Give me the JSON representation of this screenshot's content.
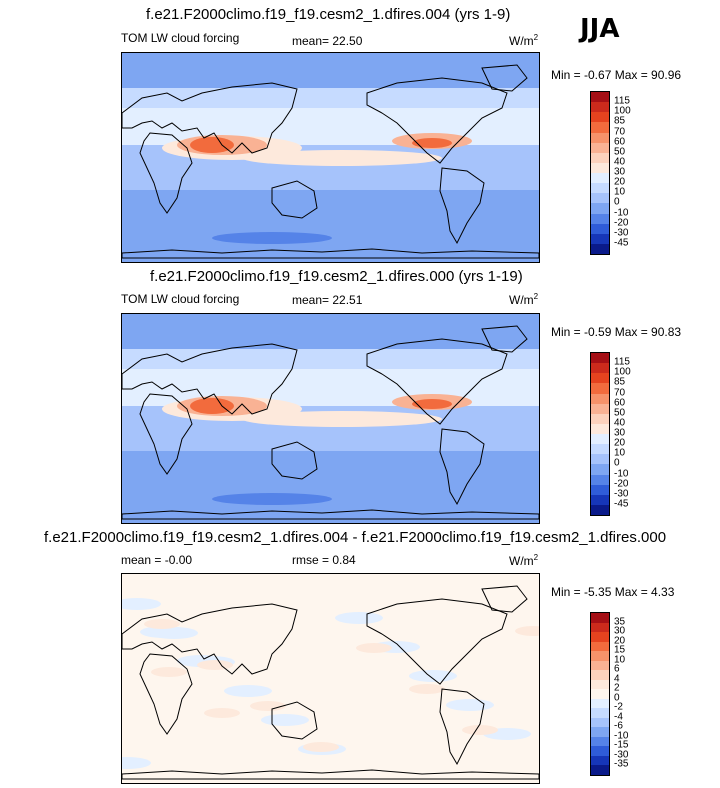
{
  "season": "JJA",
  "panels": [
    {
      "title": "f.e21.F2000climo.f19_f19.cesm2_1.dfires.004 (yrs 1-9)",
      "left_label": "TOM LW cloud forcing",
      "mid_label": "mean=  22.50",
      "units": "W/m",
      "units_exp": "2",
      "minmax": "Min =  -0.67 Max =  90.96",
      "colorbar": {
        "labels": [
          "115",
          "100",
          "85",
          "70",
          "60",
          "50",
          "40",
          "30",
          "20",
          "10",
          "0",
          "-10",
          "-20",
          "-30",
          "-45"
        ],
        "colors": [
          "#a50f15",
          "#cb2a1c",
          "#e5431f",
          "#f26b3d",
          "#f6926a",
          "#f9b294",
          "#fcd2bd",
          "#fde9dc",
          "#e3efff",
          "#c6dbff",
          "#a6c3fb",
          "#7ea6f2",
          "#5583e8",
          "#2f5cd8",
          "#1636b8",
          "#0a1a8a"
        ]
      },
      "field": "control"
    },
    {
      "title": "f.e21.F2000climo.f19_f19.cesm2_1.dfires.000 (yrs 1-19)",
      "left_label": "TOM LW cloud forcing",
      "mid_label": "mean=  22.51",
      "units": "W/m",
      "units_exp": "2",
      "minmax": "Min =  -0.59 Max =  90.83",
      "colorbar": {
        "labels": [
          "115",
          "100",
          "85",
          "70",
          "60",
          "50",
          "40",
          "30",
          "20",
          "10",
          "0",
          "-10",
          "-20",
          "-30",
          "-45"
        ],
        "colors": [
          "#a50f15",
          "#cb2a1c",
          "#e5431f",
          "#f26b3d",
          "#f6926a",
          "#f9b294",
          "#fcd2bd",
          "#fde9dc",
          "#e3efff",
          "#c6dbff",
          "#a6c3fb",
          "#7ea6f2",
          "#5583e8",
          "#2f5cd8",
          "#1636b8",
          "#0a1a8a"
        ]
      },
      "field": "control"
    },
    {
      "title": "f.e21.F2000climo.f19_f19.cesm2_1.dfires.004 - f.e21.F2000climo.f19_f19.cesm2_1.dfires.000",
      "left_label": "mean =  -0.00",
      "mid_label": "rmse =   0.84",
      "units": "W/m",
      "units_exp": "2",
      "minmax": "Min =  -5.35 Max =   4.33",
      "colorbar": {
        "labels": [
          "35",
          "30",
          "20",
          "15",
          "10",
          "6",
          "4",
          "2",
          "0",
          "-2",
          "-4",
          "-6",
          "-10",
          "-15",
          "-30",
          "-35"
        ],
        "colors": [
          "#a50f15",
          "#cb2a1c",
          "#e5431f",
          "#f26b3d",
          "#f6926a",
          "#f9b294",
          "#fcd2bd",
          "#fde9dc",
          "#fef6ee",
          "#e3efff",
          "#c6dbff",
          "#a6c3fb",
          "#7ea6f2",
          "#5583e8",
          "#2f5cd8",
          "#1636b8",
          "#0a1a8a"
        ]
      },
      "field": "difference"
    }
  ],
  "chart_data": [
    {
      "type": "heatmap",
      "title": "f.e21.F2000climo.f19_f19.cesm2_1.dfires.004 (yrs 1-9)",
      "subtitle": "TOM LW cloud forcing",
      "season": "JJA",
      "mean": 22.5,
      "units": "W/m2",
      "min": -0.67,
      "max": 90.96,
      "contour_levels": [
        -45,
        -30,
        -20,
        -10,
        0,
        10,
        20,
        30,
        40,
        50,
        60,
        70,
        85,
        100,
        115
      ],
      "projection": "global lat-lon, centered on Pacific"
    },
    {
      "type": "heatmap",
      "title": "f.e21.F2000climo.f19_f19.cesm2_1.dfires.000 (yrs 1-19)",
      "subtitle": "TOM LW cloud forcing",
      "season": "JJA",
      "mean": 22.51,
      "units": "W/m2",
      "min": -0.59,
      "max": 90.83,
      "contour_levels": [
        -45,
        -30,
        -20,
        -10,
        0,
        10,
        20,
        30,
        40,
        50,
        60,
        70,
        85,
        100,
        115
      ],
      "projection": "global lat-lon, centered on Pacific"
    },
    {
      "type": "heatmap",
      "title": "f.e21.F2000climo.f19_f19.cesm2_1.dfires.004 - f.e21.F2000climo.f19_f19.cesm2_1.dfires.000",
      "season": "JJA",
      "mean": -0.0,
      "rmse": 0.84,
      "units": "W/m2",
      "min": -5.35,
      "max": 4.33,
      "contour_levels": [
        -35,
        -30,
        -15,
        -10,
        -6,
        -4,
        -2,
        0,
        2,
        4,
        6,
        10,
        15,
        20,
        30,
        35
      ],
      "projection": "global lat-lon, centered on Pacific"
    }
  ]
}
